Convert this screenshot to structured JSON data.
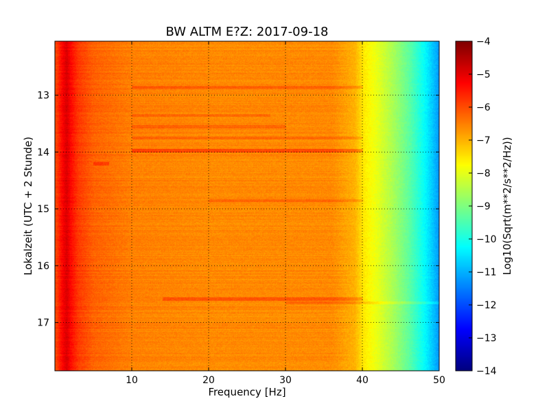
{
  "chart_data": {
    "type": "heatmap",
    "title": "BW ALTM E?Z: 2017-09-18",
    "xlabel": "Frequency [Hz]",
    "ylabel": "Lokalzeit (UTC + 2 Stunde)",
    "xlim": [
      0,
      50
    ],
    "ylim": [
      17.85,
      12.05
    ],
    "x_ticks": [
      10,
      20,
      30,
      40,
      50
    ],
    "y_ticks": [
      13,
      14,
      15,
      16,
      17
    ],
    "y_inverted": true,
    "grid": true,
    "colormap": "jet",
    "colorbar": {
      "label": "Log10(Sqrt(m**2/s**2/Hz))",
      "min": -14,
      "max": -4,
      "ticks": [
        -4,
        -5,
        -6,
        -7,
        -8,
        -9,
        -10,
        -11,
        -12,
        -13,
        -14
      ]
    },
    "spectral_profile": {
      "frequency": [
        0,
        1,
        1.5,
        2,
        3,
        5,
        10,
        20,
        30,
        36,
        39,
        40,
        42,
        44,
        46,
        48,
        49.5,
        50
      ],
      "log10_amplitude": [
        -6.0,
        -5.2,
        -4.9,
        -5.3,
        -5.8,
        -6.2,
        -6.5,
        -6.6,
        -6.6,
        -6.6,
        -7.0,
        -7.5,
        -8.0,
        -8.6,
        -9.3,
        -10.2,
        -11.0,
        -11.3
      ]
    },
    "bands": [
      {
        "time": 12.85,
        "f_from": 10,
        "f_to": 40,
        "delta": 0.45
      },
      {
        "time": 13.35,
        "f_from": 10,
        "f_to": 28,
        "delta": 0.3
      },
      {
        "time": 13.55,
        "f_from": 10,
        "f_to": 30,
        "delta": 0.35
      },
      {
        "time": 13.75,
        "f_from": 10,
        "f_to": 40,
        "delta": 0.4
      },
      {
        "time": 13.97,
        "f_from": 10,
        "f_to": 40,
        "delta": 0.7
      },
      {
        "time": 14.2,
        "f_from": 5,
        "f_to": 7,
        "delta": 0.5
      },
      {
        "time": 14.85,
        "f_from": 20,
        "f_to": 40,
        "delta": 0.35
      },
      {
        "time": 16.58,
        "f_from": 14,
        "f_to": 40,
        "delta": 0.5
      },
      {
        "time": 16.65,
        "f_from": 30,
        "f_to": 50,
        "delta": 0.4
      }
    ]
  }
}
